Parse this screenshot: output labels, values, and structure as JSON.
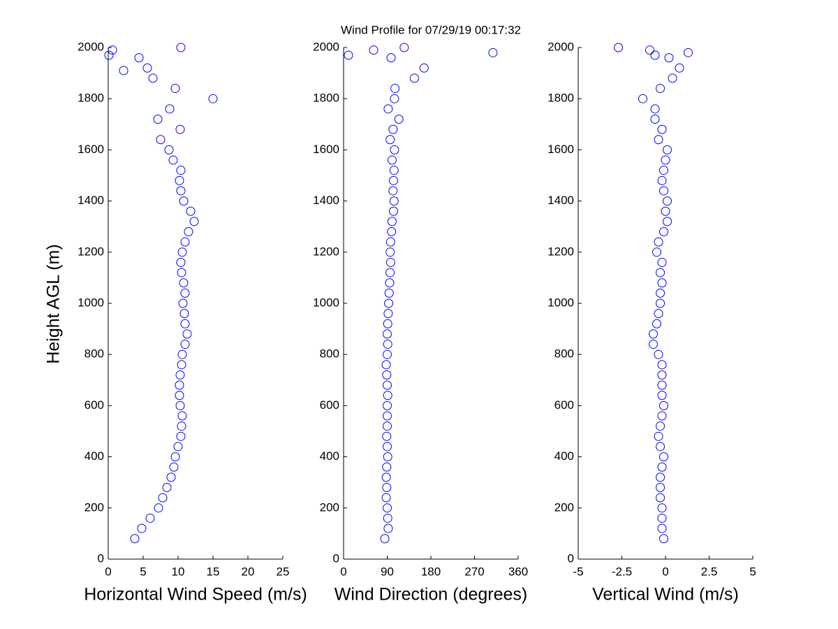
{
  "title": "Wind Profile for  07/29/19 00:17:32",
  "chart_data": [
    {
      "type": "scatter",
      "xlabel": "Horizontal Wind Speed (m/s)",
      "ylabel": "Height AGL (m)",
      "color": "#0000ff",
      "xlim": [
        0,
        25
      ],
      "xticks": [
        0,
        5,
        10,
        15,
        20,
        25
      ],
      "ylim": [
        0,
        2000
      ],
      "yticks": [
        0,
        200,
        400,
        600,
        800,
        1000,
        1200,
        1400,
        1600,
        1800,
        2000
      ],
      "x": [
        3.8,
        4.8,
        6.0,
        7.2,
        7.8,
        8.4,
        9.0,
        9.4,
        9.6,
        10.0,
        10.4,
        10.5,
        10.6,
        10.3,
        10.2,
        10.2,
        10.3,
        10.5,
        10.6,
        11.0,
        11.3,
        11.0,
        10.9,
        10.7,
        11.0,
        10.8,
        10.5,
        10.4,
        10.6,
        11.0,
        11.5,
        12.3,
        11.8,
        10.8,
        10.4,
        10.2,
        10.4,
        9.3,
        8.7,
        7.5,
        10.3,
        7.1,
        8.8,
        15.0,
        9.6,
        6.4,
        5.6,
        4.4,
        10.4,
        0.6,
        2.2,
        0.1
      ],
      "y": [
        80,
        120,
        160,
        200,
        240,
        280,
        320,
        360,
        400,
        440,
        480,
        520,
        560,
        600,
        640,
        680,
        720,
        760,
        800,
        840,
        880,
        920,
        960,
        1000,
        1040,
        1080,
        1120,
        1160,
        1200,
        1240,
        1280,
        1320,
        1360,
        1400,
        1440,
        1480,
        1520,
        1560,
        1600,
        1640,
        1680,
        1720,
        1760,
        1800,
        1840,
        1880,
        1920,
        1960,
        2000,
        1990,
        1910,
        1970
      ]
    },
    {
      "type": "scatter",
      "xlabel": "Wind Direction (degrees)",
      "color": "#0000ff",
      "xlim": [
        0,
        360
      ],
      "xticks": [
        0,
        90,
        180,
        270,
        360
      ],
      "ylim": [
        0,
        2000
      ],
      "yticks": [
        0,
        200,
        400,
        600,
        800,
        1000,
        1200,
        1400,
        1600,
        1800,
        2000
      ],
      "x": [
        85,
        92,
        91,
        90,
        88,
        89,
        88,
        89,
        91,
        90,
        89,
        90,
        90,
        90,
        91,
        90,
        89,
        88,
        90,
        91,
        90,
        91,
        92,
        93,
        94,
        95,
        96,
        97,
        96,
        97,
        99,
        100,
        103,
        104,
        102,
        103,
        104,
        100,
        105,
        96,
        102,
        114,
        92,
        105,
        106,
        146,
        166,
        98,
        125,
        62,
        308,
        10
      ],
      "y": [
        80,
        120,
        160,
        200,
        240,
        280,
        320,
        360,
        400,
        440,
        480,
        520,
        560,
        600,
        640,
        680,
        720,
        760,
        800,
        840,
        880,
        920,
        960,
        1000,
        1040,
        1080,
        1120,
        1160,
        1200,
        1240,
        1280,
        1320,
        1360,
        1400,
        1440,
        1480,
        1520,
        1560,
        1600,
        1640,
        1680,
        1720,
        1760,
        1800,
        1840,
        1880,
        1920,
        1960,
        2000,
        1990,
        1980,
        1970
      ]
    },
    {
      "type": "scatter",
      "xlabel": "Vertical Wind (m/s)",
      "color": "#0000ff",
      "xlim": [
        -5,
        5
      ],
      "xticks": [
        -5,
        {
          "value": -2.5,
          "label": "-2.5"
        },
        0,
        2.5,
        5
      ],
      "ylim": [
        0,
        2000
      ],
      "yticks": [
        0,
        200,
        400,
        600,
        800,
        1000,
        1200,
        1400,
        1600,
        1800,
        2000
      ],
      "x": [
        -0.1,
        -0.2,
        -0.2,
        -0.2,
        -0.3,
        -0.3,
        -0.3,
        -0.2,
        -0.1,
        -0.3,
        -0.4,
        -0.3,
        -0.2,
        -0.1,
        -0.2,
        -0.2,
        -0.2,
        -0.2,
        -0.4,
        -0.7,
        -0.7,
        -0.5,
        -0.4,
        -0.3,
        -0.3,
        -0.2,
        -0.3,
        -0.2,
        -0.5,
        -0.4,
        -0.1,
        0.1,
        0.0,
        0.1,
        -0.1,
        -0.2,
        -0.1,
        0.0,
        0.1,
        -0.4,
        -0.2,
        -0.6,
        -0.6,
        -1.3,
        -0.3,
        0.4,
        0.8,
        0.2,
        -2.7,
        -0.9,
        1.3,
        -0.6
      ],
      "y": [
        80,
        120,
        160,
        200,
        240,
        280,
        320,
        360,
        400,
        440,
        480,
        520,
        560,
        600,
        640,
        680,
        720,
        760,
        800,
        840,
        880,
        920,
        960,
        1000,
        1040,
        1080,
        1120,
        1160,
        1200,
        1240,
        1280,
        1320,
        1360,
        1400,
        1440,
        1480,
        1520,
        1560,
        1600,
        1640,
        1680,
        1720,
        1760,
        1800,
        1840,
        1880,
        1920,
        1960,
        2000,
        1990,
        1980,
        1970
      ]
    }
  ]
}
